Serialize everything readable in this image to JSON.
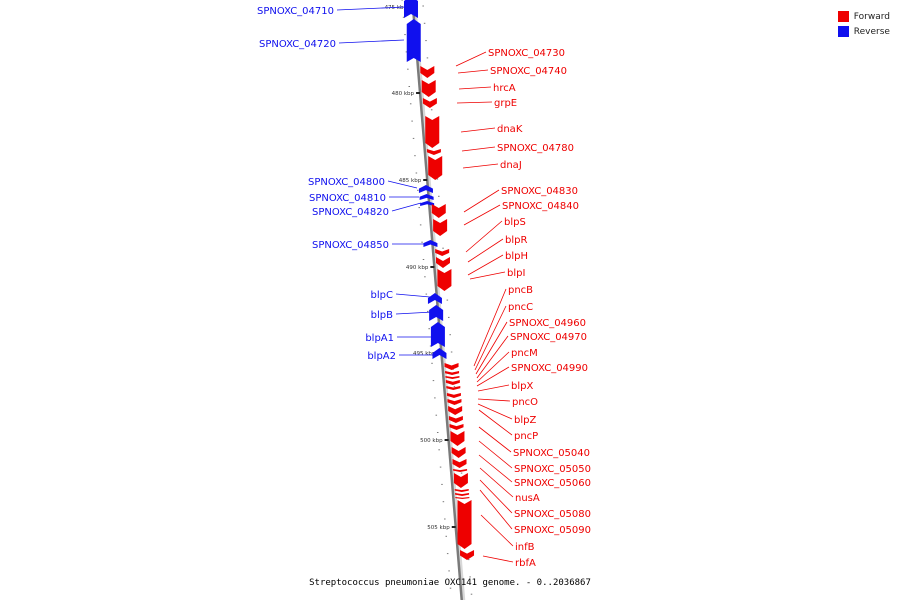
{
  "legend": {
    "forward_label": "Forward",
    "reverse_label": "Reverse",
    "forward_color": "#ee0000",
    "reverse_color": "#1010ee"
  },
  "caption": "Streptococcus pneumoniae OXC141 genome. - 0..2036867",
  "position_labels": [
    "475 kbp",
    "480 kbp",
    "485 kbp",
    "490 kbp",
    "495 kbp",
    "500 kbp",
    "505 kbp"
  ],
  "reverse_genes": [
    "SPNOXC_04710",
    "SPNOXC_04720",
    "SPNOXC_04800",
    "SPNOXC_04810",
    "SPNOXC_04820",
    "SPNOXC_04850",
    "blpC",
    "blpB",
    "blpA1",
    "blpA2"
  ],
  "forward_genes": [
    "SPNOXC_04730",
    "SPNOXC_04740",
    "hrcA",
    "grpE",
    "dnaK",
    "SPNOXC_04780",
    "dnaJ",
    "SPNOXC_04830",
    "SPNOXC_04840",
    "blpS",
    "blpR",
    "blpH",
    "blpI",
    "pncB",
    "pncC",
    "SPNOXC_04960",
    "SPNOXC_04970",
    "pncM",
    "SPNOXC_04990",
    "blpX",
    "pncO",
    "blpZ",
    "pncP",
    "SPNOXC_05040",
    "SPNOXC_05050",
    "SPNOXC_05060",
    "nusA",
    "SPNOXC_05080",
    "SPNOXC_05090",
    "infB",
    "rbfA"
  ]
}
